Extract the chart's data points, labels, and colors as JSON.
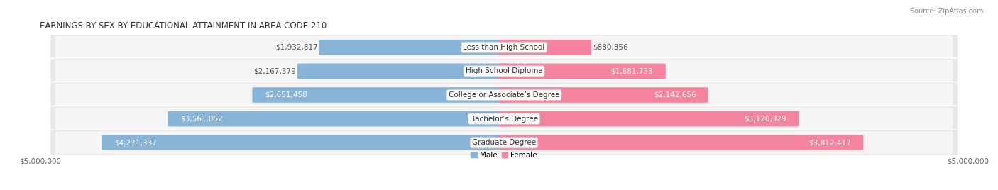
{
  "title": "EARNINGS BY SEX BY EDUCATIONAL ATTAINMENT IN AREA CODE 210",
  "source": "Source: ZipAtlas.com",
  "categories": [
    "Less than High School",
    "High School Diploma",
    "College or Associate’s Degree",
    "Bachelor’s Degree",
    "Graduate Degree"
  ],
  "male_values": [
    1932817,
    2167379,
    2651458,
    3561852,
    4271337
  ],
  "female_values": [
    880356,
    1681733,
    2142656,
    3120329,
    3812417
  ],
  "male_labels": [
    "$1,932,817",
    "$2,167,379",
    "$2,651,458",
    "$3,561,852",
    "$4,271,337"
  ],
  "female_labels": [
    "$880,356",
    "$1,681,733",
    "$2,142,656",
    "$3,120,329",
    "$3,812,417"
  ],
  "male_color": "#88b4d8",
  "female_color": "#f484a0",
  "row_bg_color": "#e8e8e8",
  "row_inner_color": "#f5f5f5",
  "max_value": 5000000,
  "axis_label_left": "$5,000,000",
  "axis_label_right": "$5,000,000",
  "title_fontsize": 8.5,
  "label_fontsize": 7.5,
  "source_fontsize": 7,
  "background_color": "#ffffff",
  "bar_height": 0.62,
  "legend_labels": [
    "Male",
    "Female"
  ],
  "male_inside_threshold": 0.45,
  "female_inside_threshold": 0.25
}
